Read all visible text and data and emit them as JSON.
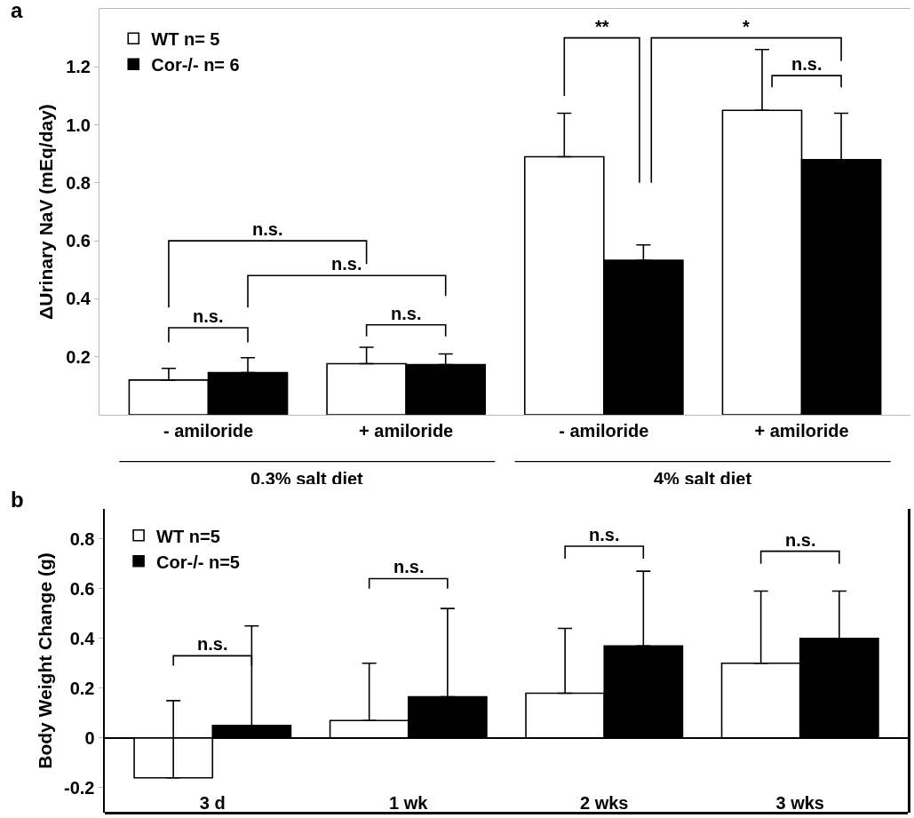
{
  "chart_data": [
    {
      "type": "bar",
      "title": "a",
      "ylabel": "ΔUrinary NaV (mEq/day)",
      "categories": [
        "- amiloride",
        "+ amiloride",
        "- amiloride",
        "+ amiloride"
      ],
      "ylim": [
        0,
        1.4
      ],
      "yticks": [
        0.2,
        0.4,
        0.6,
        0.8,
        {
          "value": 1,
          "label": "1.0"
        },
        1.2
      ],
      "legend": "top left",
      "series": [
        {
          "name": "WT n= 5",
          "color": "#ffffff",
          "values": [
            0.12,
            0.176,
            0.89,
            1.05
          ],
          "errors": [
            [
              0.12,
              0.16
            ],
            [
              0.176,
              0.233
            ],
            [
              0.89,
              1.04
            ],
            [
              1.05,
              1.26
            ]
          ]
        },
        {
          "name": "Cor-/- n= 6",
          "color": "#000000",
          "values": [
            0.145,
            0.173,
            0.533,
            0.88
          ],
          "errors": [
            [
              0.145,
              0.197
            ],
            [
              0.173,
              0.21
            ],
            [
              0.533,
              0.586
            ],
            [
              0.88,
              1.04
            ]
          ]
        }
      ],
      "annotations": [
        "n.s.",
        "n.s.",
        "n.s.",
        "n.s.",
        "**",
        "*",
        "n.s.",
        "0.3% salt diet",
        "4% salt diet"
      ]
    },
    {
      "type": "bar",
      "title": "b",
      "ylabel": "Body Weight Change (g)",
      "categories": [
        "3 d",
        "1 wk",
        "2 wks",
        "3 wks"
      ],
      "ylim": [
        -0.3,
        0.92
      ],
      "yticks": [
        -0.2,
        0,
        0.2,
        0.4,
        0.6,
        0.8
      ],
      "legend": "top left",
      "series": [
        {
          "name": "WT n=5",
          "color": "#ffffff",
          "values": [
            -0.16,
            0.07,
            0.18,
            0.3
          ],
          "errors": [
            [
              -0.16,
              0.15
            ],
            [
              0.07,
              0.3
            ],
            [
              0.18,
              0.44
            ],
            [
              0.3,
              0.59
            ]
          ]
        },
        {
          "name": "Cor-/- n=5",
          "color": "#000000",
          "values": [
            0.05,
            0.165,
            0.37,
            0.4
          ],
          "errors": [
            [
              0.05,
              0.45
            ],
            [
              0.165,
              0.52
            ],
            [
              0.37,
              0.67
            ],
            [
              0.4,
              0.59
            ]
          ]
        }
      ],
      "annotations": [
        "n.s.",
        "n.s.",
        "n.s.",
        "n.s."
      ]
    }
  ]
}
